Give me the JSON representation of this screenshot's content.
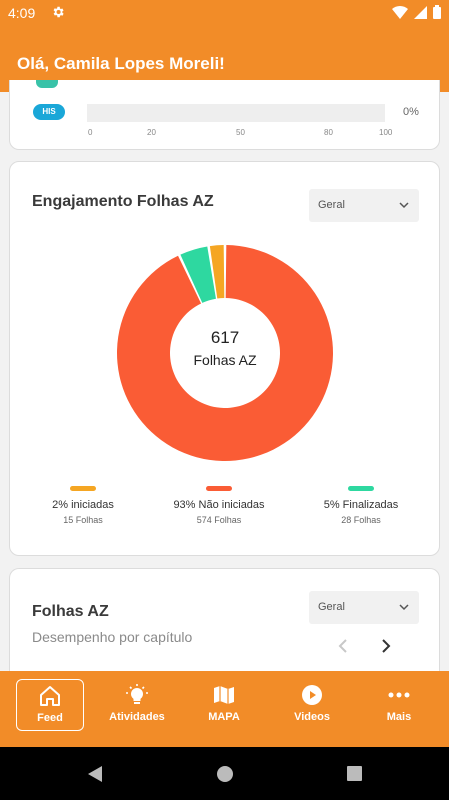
{
  "status_bar": {
    "time": "4:09",
    "icons": [
      "gear-icon",
      "wifi-icon",
      "signal-icon",
      "battery-icon"
    ]
  },
  "app_bar": {
    "title": "Olá, Camila Lopes Moreli!"
  },
  "his_card": {
    "tag": "HIS",
    "percent_label": "0%",
    "progress": 0,
    "axis_ticks": [
      "0",
      "20",
      "50",
      "80",
      "100"
    ]
  },
  "engagement_card": {
    "title": "Engajamento Folhas AZ",
    "filter": {
      "selected": "Geral"
    },
    "center": {
      "total": "617",
      "label": "Folhas AZ"
    },
    "legend": [
      {
        "label": "2% iniciadas",
        "sub": "15 Folhas",
        "color": "#f5a623"
      },
      {
        "label": "93% Não iniciadas",
        "sub": "574 Folhas",
        "color": "#fa5c35"
      },
      {
        "label": "5% Finalizadas",
        "sub": "28 Folhas",
        "color": "#2ed8a0"
      }
    ]
  },
  "chart_data": {
    "type": "pie",
    "title": "Engajamento Folhas AZ",
    "center_text": "617 Folhas AZ",
    "categories": [
      "Não iniciadas",
      "Finalizadas",
      "iniciadas"
    ],
    "values": [
      574,
      28,
      15
    ],
    "percentages": [
      93,
      5,
      2
    ],
    "colors": [
      "#fa5c35",
      "#2ed8a0",
      "#f5a623"
    ],
    "legend": "bottom"
  },
  "folhas_card": {
    "title": "Folhas AZ",
    "subtitle": "Desempenho por capítulo",
    "filter": {
      "selected": "Geral"
    }
  },
  "bottom_nav": {
    "items": [
      {
        "label": "Feed",
        "icon": "home-icon",
        "active": true
      },
      {
        "label": "Atividades",
        "icon": "lightbulb-icon",
        "active": false
      },
      {
        "label": "MAPA",
        "icon": "map-icon",
        "active": false
      },
      {
        "label": "Videos",
        "icon": "play-icon",
        "active": false
      },
      {
        "label": "Mais",
        "icon": "more-dots-icon",
        "active": false
      }
    ]
  },
  "colors": {
    "brand": "#f28c28",
    "his_tag": "#1aa7d8"
  }
}
